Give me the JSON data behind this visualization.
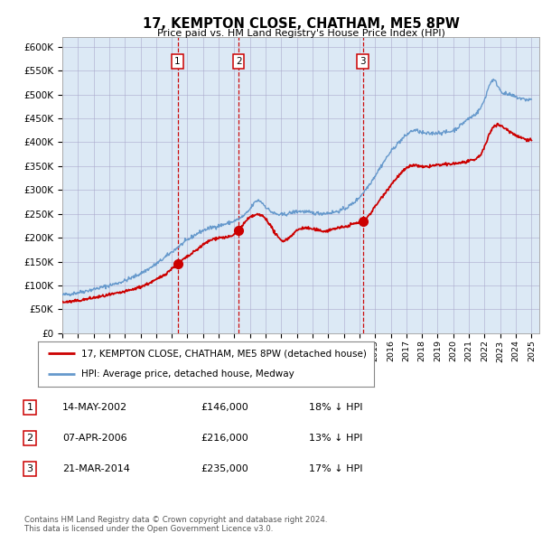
{
  "title": "17, KEMPTON CLOSE, CHATHAM, ME5 8PW",
  "subtitle": "Price paid vs. HM Land Registry's House Price Index (HPI)",
  "footer1": "Contains HM Land Registry data © Crown copyright and database right 2024.",
  "footer2": "This data is licensed under the Open Government Licence v3.0.",
  "legend_line1": "17, KEMPTON CLOSE, CHATHAM, ME5 8PW (detached house)",
  "legend_line2": "HPI: Average price, detached house, Medway",
  "sale_labels": [
    {
      "num": "1",
      "date": "14-MAY-2002",
      "price": "£146,000",
      "pct": "18% ↓ HPI"
    },
    {
      "num": "2",
      "date": "07-APR-2006",
      "price": "£216,000",
      "pct": "13% ↓ HPI"
    },
    {
      "num": "3",
      "date": "21-MAR-2014",
      "price": "£235,000",
      "pct": "17% ↓ HPI"
    }
  ],
  "sale_dates_decimal": [
    2002.37,
    2006.27,
    2014.22
  ],
  "sale_prices": [
    146000,
    216000,
    235000
  ],
  "hpi_color": "#6699cc",
  "price_color": "#cc0000",
  "bg_color": "#dce9f5",
  "grid_color": "#aaaacc",
  "dashed_line_color": "#cc0000",
  "ylim": [
    0,
    620000
  ],
  "yticks": [
    0,
    50000,
    100000,
    150000,
    200000,
    250000,
    300000,
    350000,
    400000,
    450000,
    500000,
    550000,
    600000
  ],
  "ytick_labels": [
    "£0",
    "£50K",
    "£100K",
    "£150K",
    "£200K",
    "£250K",
    "£300K",
    "£350K",
    "£400K",
    "£450K",
    "£500K",
    "£550K",
    "£600K"
  ],
  "xlim_start": 1995.0,
  "xlim_end": 2025.5,
  "xticks": [
    1995,
    1996,
    1997,
    1998,
    1999,
    2000,
    2001,
    2002,
    2003,
    2004,
    2005,
    2006,
    2007,
    2008,
    2009,
    2010,
    2011,
    2012,
    2013,
    2014,
    2015,
    2016,
    2017,
    2018,
    2019,
    2020,
    2021,
    2022,
    2023,
    2024,
    2025
  ]
}
